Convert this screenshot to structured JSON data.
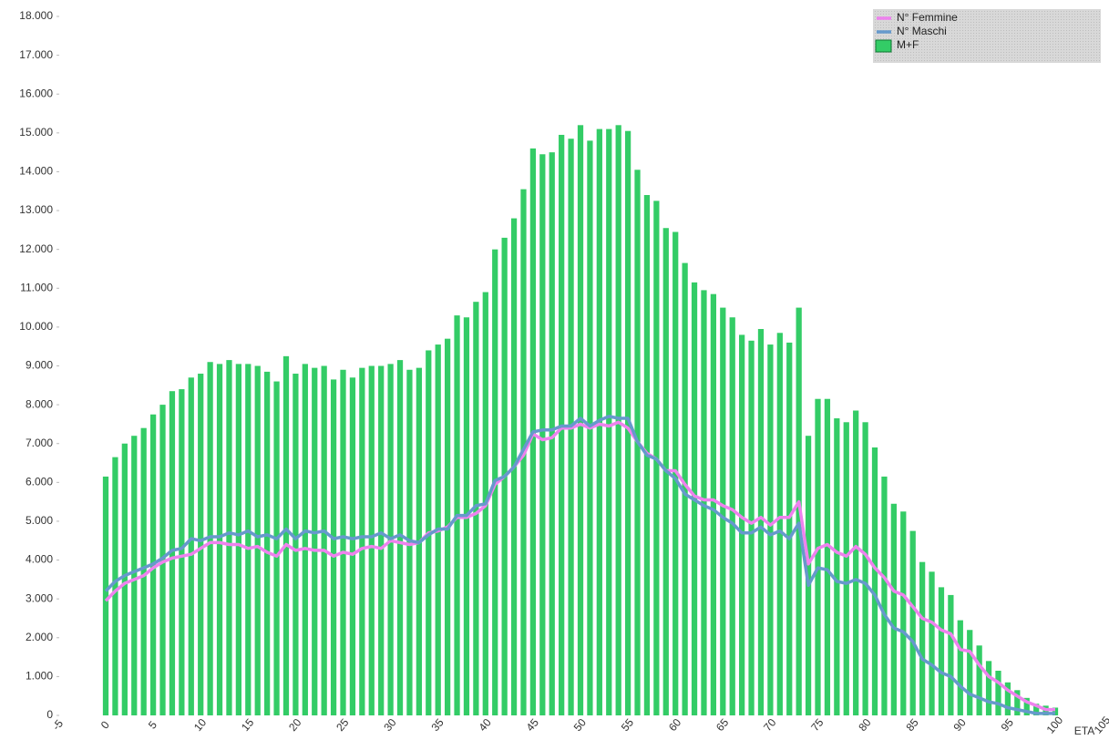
{
  "chart_data": {
    "type": "bar",
    "x_label": "ETA",
    "x": [
      0,
      1,
      2,
      3,
      4,
      5,
      6,
      7,
      8,
      9,
      10,
      11,
      12,
      13,
      14,
      15,
      16,
      17,
      18,
      19,
      20,
      21,
      22,
      23,
      24,
      25,
      26,
      27,
      28,
      29,
      30,
      31,
      32,
      33,
      34,
      35,
      36,
      37,
      38,
      39,
      40,
      41,
      42,
      43,
      44,
      45,
      46,
      47,
      48,
      49,
      50,
      51,
      52,
      53,
      54,
      55,
      56,
      57,
      58,
      59,
      60,
      61,
      62,
      63,
      64,
      65,
      66,
      67,
      68,
      69,
      70,
      71,
      72,
      73,
      74,
      75,
      76,
      77,
      78,
      79,
      80,
      81,
      82,
      83,
      84,
      85,
      86,
      87,
      88,
      89,
      90,
      91,
      92,
      93,
      94,
      95,
      96,
      97,
      98,
      99,
      100
    ],
    "series": [
      {
        "name": "M+F",
        "type": "bar",
        "color": "#33cc66",
        "values": [
          6150,
          6650,
          7000,
          7200,
          7400,
          7750,
          8000,
          8350,
          8400,
          8700,
          8800,
          9100,
          9050,
          9150,
          9050,
          9050,
          9000,
          8850,
          8600,
          9250,
          8800,
          9050,
          8950,
          9000,
          8650,
          8900,
          8700,
          8950,
          9000,
          9000,
          9050,
          9150,
          8900,
          8950,
          9400,
          9550,
          9700,
          10300,
          10250,
          10650,
          10900,
          12000,
          12300,
          12800,
          13550,
          14600,
          14450,
          14500,
          14950,
          14850,
          15200,
          14800,
          15100,
          15100,
          15200,
          15050,
          14050,
          13400,
          13250,
          12550,
          12450,
          11650,
          11150,
          10950,
          10850,
          10500,
          10250,
          9800,
          9650,
          9950,
          9550,
          9850,
          9600,
          10500,
          7200,
          8150,
          8150,
          7650,
          7550,
          7850,
          7550,
          6900,
          6150,
          5450,
          5250,
          4750,
          3950,
          3700,
          3300,
          3100,
          2450,
          2200,
          1800,
          1400,
          1150,
          850,
          650,
          450,
          300,
          250,
          200
        ]
      },
      {
        "name": "N° Femmine",
        "type": "line",
        "color": "#ee82ee",
        "values": [
          2950,
          3200,
          3400,
          3500,
          3600,
          3800,
          3950,
          4050,
          4100,
          4150,
          4300,
          4450,
          4450,
          4400,
          4400,
          4300,
          4350,
          4200,
          4100,
          4400,
          4250,
          4300,
          4250,
          4250,
          4100,
          4200,
          4150,
          4300,
          4350,
          4300,
          4500,
          4450,
          4400,
          4450,
          4700,
          4750,
          4850,
          5100,
          5100,
          5200,
          5400,
          5950,
          6150,
          6400,
          6700,
          7250,
          7100,
          7150,
          7400,
          7400,
          7500,
          7400,
          7500,
          7450,
          7550,
          7400,
          7050,
          6750,
          6600,
          6300,
          6300,
          5950,
          5650,
          5550,
          5550,
          5400,
          5300,
          5100,
          4950,
          5100,
          4900,
          5100,
          5100,
          5500,
          3900,
          4300,
          4400,
          4200,
          4100,
          4350,
          4150,
          3800,
          3550,
          3200,
          3100,
          2800,
          2500,
          2400,
          2200,
          2100,
          1700,
          1650,
          1300,
          1000,
          850,
          650,
          500,
          350,
          250,
          150,
          150
        ]
      },
      {
        "name": "N° Maschi",
        "type": "line",
        "color": "#6699cc",
        "values": [
          3200,
          3450,
          3600,
          3700,
          3800,
          3900,
          4050,
          4250,
          4300,
          4550,
          4500,
          4600,
          4600,
          4700,
          4650,
          4750,
          4600,
          4650,
          4550,
          4800,
          4550,
          4750,
          4700,
          4750,
          4550,
          4600,
          4550,
          4600,
          4600,
          4700,
          4550,
          4650,
          4500,
          4450,
          4650,
          4800,
          4800,
          5150,
          5150,
          5400,
          5450,
          6050,
          6150,
          6400,
          6850,
          7300,
          7350,
          7350,
          7450,
          7450,
          7650,
          7450,
          7600,
          7700,
          7650,
          7650,
          7050,
          6700,
          6600,
          6300,
          6100,
          5700,
          5550,
          5400,
          5300,
          5100,
          4950,
          4700,
          4700,
          4850,
          4650,
          4750,
          4550,
          4950,
          3350,
          3800,
          3750,
          3450,
          3400,
          3500,
          3400,
          3100,
          2600,
          2250,
          2150,
          1900,
          1450,
          1300,
          1100,
          1000,
          750,
          550,
          450,
          350,
          300,
          200,
          150,
          100,
          50,
          50,
          50
        ]
      }
    ],
    "xlim": [
      -5,
      105
    ],
    "xticks": [
      -5,
      0,
      5,
      10,
      15,
      20,
      25,
      30,
      35,
      40,
      45,
      50,
      55,
      60,
      65,
      70,
      75,
      80,
      85,
      90,
      95,
      100,
      105
    ],
    "ylim": [
      0,
      18000
    ],
    "yticks": [
      0,
      {
        "value": 1000,
        "label": "1.000"
      },
      {
        "value": 2000,
        "label": "2.000"
      },
      {
        "value": 3000,
        "label": "3.000"
      },
      {
        "value": 4000,
        "label": "4.000"
      },
      {
        "value": 5000,
        "label": "5.000"
      },
      {
        "value": 6000,
        "label": "6.000"
      },
      {
        "value": 7000,
        "label": "7.000"
      },
      {
        "value": 8000,
        "label": "8.000"
      },
      {
        "value": 9000,
        "label": "9.000"
      },
      {
        "value": 10000,
        "label": "10.000"
      },
      {
        "value": 11000,
        "label": "11.000"
      },
      {
        "value": 12000,
        "label": "12.000"
      },
      {
        "value": 13000,
        "label": "13.000"
      },
      {
        "value": 14000,
        "label": "14.000"
      },
      {
        "value": 15000,
        "label": "15.000"
      },
      {
        "value": 16000,
        "label": "16.000"
      },
      {
        "value": 17000,
        "label": "17.000"
      },
      {
        "value": 18000,
        "label": "18.000"
      }
    ],
    "legend": "top-right"
  }
}
